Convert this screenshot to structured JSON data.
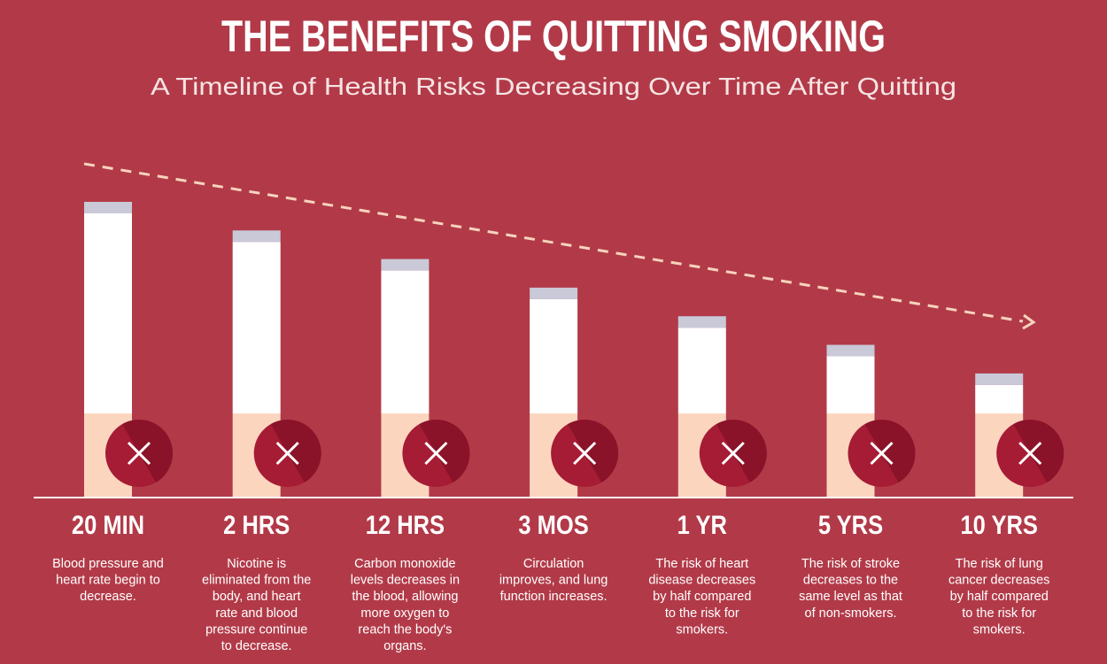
{
  "header": {
    "title": "THE BENEFITS OF QUITTING SMOKING",
    "subtitle": "A Timeline of Health Risks Decreasing Over Time After Quitting"
  },
  "steps": [
    {
      "label": "20 MIN",
      "description": [
        "Blood pressure and",
        "heart rate begin to",
        "decrease."
      ]
    },
    {
      "label": "2 HRS",
      "description": [
        "Nicotine is",
        "eliminated from the",
        "body, and heart",
        "rate and blood",
        "pressure continue",
        "to decrease."
      ]
    },
    {
      "label": "12 HRS",
      "description": [
        "Carbon monoxide",
        "levels decreases in",
        "the blood, allowing",
        "more oxygen to",
        "reach the body's",
        "organs."
      ]
    },
    {
      "label": "3 MOS",
      "description": [
        "Circulation",
        "improves, and lung",
        "function increases."
      ]
    },
    {
      "label": "1 YR",
      "description": [
        "The risk of heart",
        "disease decreases",
        "by half compared",
        "to the risk for",
        "smokers."
      ]
    },
    {
      "label": "5 YRS",
      "description": [
        "The risk of stroke",
        "decreases to the",
        "same level as that",
        "of non-smokers."
      ]
    },
    {
      "label": "10 YRS",
      "description": [
        "The risk of lung",
        "cancer decreases",
        "by half compared",
        "to the risk for",
        "smokers."
      ]
    }
  ]
}
